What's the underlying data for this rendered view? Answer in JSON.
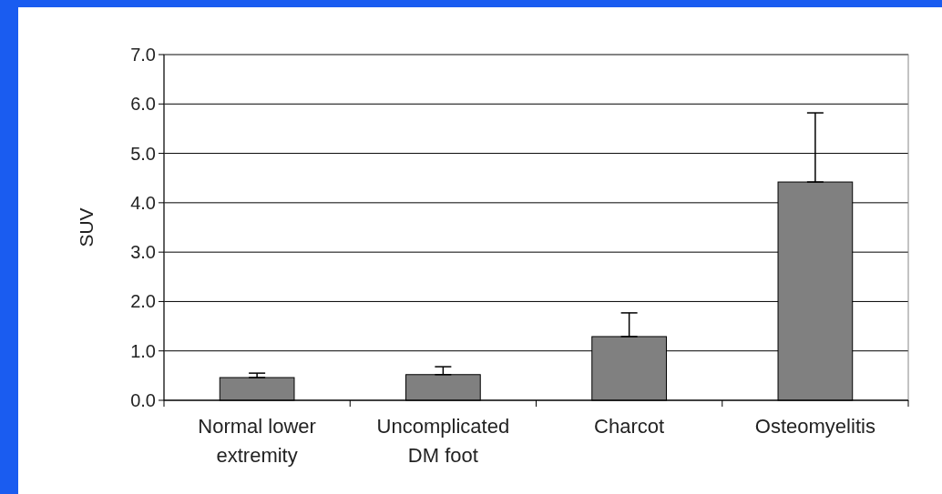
{
  "chart_data": {
    "type": "bar",
    "ylabel": "SUV",
    "categories": [
      "Normal lower extremity",
      "Uncomplicated DM foot",
      "Charcot",
      "Osteomyelitis"
    ],
    "values": [
      0.46,
      0.52,
      1.29,
      4.42
    ],
    "errors": [
      [
        0.46,
        0.55
      ],
      [
        0.52,
        0.68
      ],
      [
        1.29,
        1.77
      ],
      [
        4.42,
        5.82
      ]
    ],
    "color": "#808080",
    "ylim": [
      0,
      7
    ],
    "yticks": [
      {
        "value": 0,
        "label": "0.0"
      },
      {
        "value": 1,
        "label": "1.0"
      },
      {
        "value": 2,
        "label": "2.0"
      },
      {
        "value": 3,
        "label": "3.0"
      },
      {
        "value": 4,
        "label": "4.0"
      },
      {
        "value": 5,
        "label": "5.0"
      },
      {
        "value": 6,
        "label": "6.0"
      },
      {
        "value": 7,
        "label": "7.0"
      }
    ],
    "grid": "y"
  }
}
